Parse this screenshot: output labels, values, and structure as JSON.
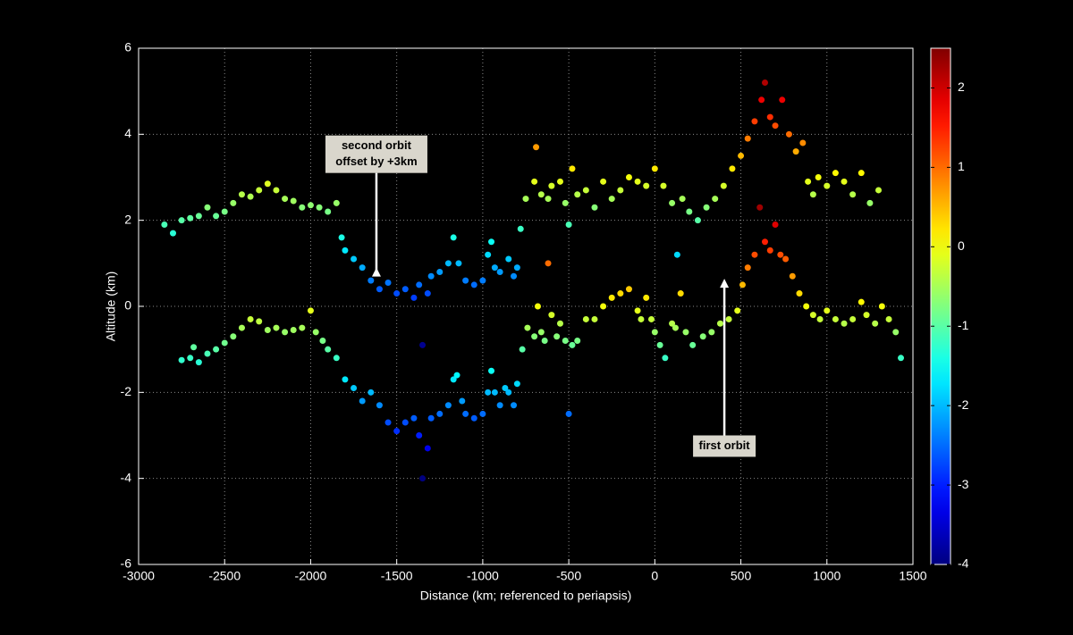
{
  "chart_data": {
    "type": "scatter",
    "xlabel": "Distance (km; referenced to periapsis)",
    "ylabel": "Altitude (km)",
    "xlim": [
      -3000,
      1500
    ],
    "xticks": [
      -3000,
      -2500,
      -2000,
      -1500,
      -1000,
      -500,
      0,
      500,
      1000,
      1500
    ],
    "ylim": [
      -6,
      6
    ],
    "yticks": [
      -6,
      -4,
      -2,
      0,
      2,
      4,
      6
    ],
    "grid": true,
    "colormap": "jet",
    "clim": [
      -4,
      2.5
    ],
    "cticks": [
      -4,
      -3,
      -2,
      -1,
      0,
      1,
      2
    ],
    "series": [
      {
        "name": "first orbit",
        "color_offset": 0,
        "x": [
          -2750,
          -2700,
          -2680,
          -2650,
          -2600,
          -2550,
          -2500,
          -2450,
          -2400,
          -2350,
          -2300,
          -2250,
          -2200,
          -2150,
          -2100,
          -2050,
          -2000,
          -1970,
          -1930,
          -1900,
          -1850,
          -1800,
          -1750,
          -1700,
          -1650,
          -1600,
          -1550,
          -1500,
          -1450,
          -1400,
          -1370,
          -1350,
          -1320,
          -1300,
          -1250,
          -1200,
          -1170,
          -1150,
          -1120,
          -1100,
          -1050,
          -1000,
          -970,
          -950,
          -930,
          -900,
          -870,
          -850,
          -820,
          -800,
          -770,
          -740,
          -700,
          -680,
          -660,
          -640,
          -620,
          -600,
          -570,
          -550,
          -520,
          -500,
          -480,
          -450,
          -400,
          -350,
          -300,
          -250,
          -200,
          -150,
          -100,
          -80,
          -50,
          -20,
          0,
          30,
          60,
          100,
          120,
          150,
          180,
          220,
          280,
          330,
          380,
          430,
          480,
          510,
          540,
          580,
          610,
          640,
          670,
          700,
          730,
          760,
          800,
          840,
          880,
          920,
          960,
          1000,
          1050,
          1100,
          1150,
          1200,
          1230,
          1280,
          1320,
          1360,
          1400,
          1430
        ],
        "y": [
          -1.25,
          -1.2,
          -0.95,
          -1.3,
          -1.1,
          -1.0,
          -0.85,
          -0.7,
          -0.5,
          -0.3,
          -0.35,
          -0.55,
          -0.5,
          -0.6,
          -0.55,
          -0.5,
          -0.1,
          -0.6,
          -0.8,
          -1.0,
          -1.2,
          -1.7,
          -1.9,
          -2.2,
          -2.0,
          -2.3,
          -2.7,
          -2.9,
          -2.7,
          -2.6,
          -3.0,
          -4.0,
          -3.3,
          -2.6,
          -2.5,
          -2.3,
          -1.7,
          -1.6,
          -2.2,
          -2.5,
          -2.6,
          -2.5,
          -2.0,
          -1.5,
          -2.0,
          -2.3,
          -1.9,
          -2.0,
          -2.3,
          -1.8,
          -1.0,
          -0.5,
          -0.7,
          0.0,
          -0.6,
          -0.8,
          1.0,
          -0.2,
          -0.7,
          -0.4,
          -0.8,
          -2.5,
          -0.9,
          -0.8,
          -0.3,
          -0.3,
          0.0,
          0.2,
          0.3,
          0.4,
          -0.1,
          -0.3,
          0.2,
          -0.3,
          -0.6,
          -0.9,
          -1.2,
          -0.4,
          -0.5,
          0.3,
          -0.6,
          -0.9,
          -0.7,
          -0.6,
          -0.4,
          -0.3,
          -0.1,
          0.5,
          0.9,
          1.2,
          2.3,
          1.5,
          1.3,
          1.9,
          1.2,
          1.1,
          0.7,
          0.3,
          0.0,
          -0.2,
          -0.3,
          -0.1,
          -0.3,
          -0.4,
          -0.3,
          0.1,
          -0.2,
          -0.4,
          0.0,
          -0.3,
          -0.6,
          -1.2
        ]
      },
      {
        "name": "second orbit",
        "color_offset": 3,
        "x": [
          -2850,
          -2800,
          -2750,
          -2700,
          -2650,
          -2600,
          -2550,
          -2500,
          -2450,
          -2400,
          -2350,
          -2300,
          -2250,
          -2200,
          -2150,
          -2100,
          -2050,
          -2000,
          -1950,
          -1900,
          -1850,
          -1820,
          -1800,
          -1750,
          -1700,
          -1650,
          -1600,
          -1550,
          -1500,
          -1450,
          -1400,
          -1370,
          -1350,
          -1320,
          -1300,
          -1250,
          -1200,
          -1170,
          -1140,
          -1100,
          -1050,
          -1000,
          -970,
          -950,
          -930,
          -900,
          -850,
          -820,
          -800,
          -780,
          -750,
          -700,
          -690,
          -660,
          -620,
          -600,
          -550,
          -520,
          -500,
          -480,
          -450,
          -400,
          -350,
          -300,
          -250,
          -200,
          -150,
          -100,
          -50,
          0,
          50,
          100,
          130,
          160,
          200,
          250,
          300,
          350,
          400,
          450,
          500,
          540,
          580,
          620,
          640,
          670,
          700,
          740,
          780,
          820,
          860,
          890,
          920,
          950,
          1000,
          1050,
          1100,
          1150,
          1200,
          1250,
          1300
        ],
        "y": [
          1.9,
          1.7,
          2.0,
          2.05,
          2.1,
          2.3,
          2.1,
          2.2,
          2.4,
          2.6,
          2.55,
          2.7,
          2.85,
          2.7,
          2.5,
          2.45,
          2.3,
          2.35,
          2.3,
          2.2,
          2.4,
          1.6,
          1.3,
          1.1,
          0.9,
          0.6,
          0.4,
          0.55,
          0.3,
          0.4,
          0.2,
          0.5,
          -0.9,
          0.3,
          0.7,
          0.8,
          1.0,
          1.6,
          1.0,
          0.6,
          0.5,
          0.6,
          1.2,
          1.5,
          0.9,
          0.8,
          1.1,
          0.7,
          0.9,
          1.8,
          2.5,
          2.9,
          3.7,
          2.6,
          2.5,
          2.8,
          2.9,
          2.4,
          1.9,
          3.2,
          2.6,
          2.7,
          2.3,
          2.9,
          2.5,
          2.7,
          3.0,
          2.9,
          2.8,
          3.2,
          2.8,
          2.4,
          1.2,
          2.5,
          2.2,
          2.0,
          2.3,
          2.5,
          2.8,
          3.2,
          3.5,
          3.9,
          4.3,
          4.8,
          5.2,
          4.4,
          4.2,
          4.8,
          4.0,
          3.6,
          3.8,
          2.9,
          2.6,
          3.0,
          2.8,
          3.1,
          2.9,
          2.6,
          3.1,
          2.4,
          2.7
        ]
      }
    ],
    "annotations": [
      {
        "lines": [
          "second orbit",
          "offset by +3km"
        ],
        "x": -1618,
        "y": 0.9,
        "from_y": 3.1
      },
      {
        "lines": [
          "first orbit"
        ],
        "x": 404,
        "y": 0.64,
        "from_y": -3.0
      }
    ]
  }
}
